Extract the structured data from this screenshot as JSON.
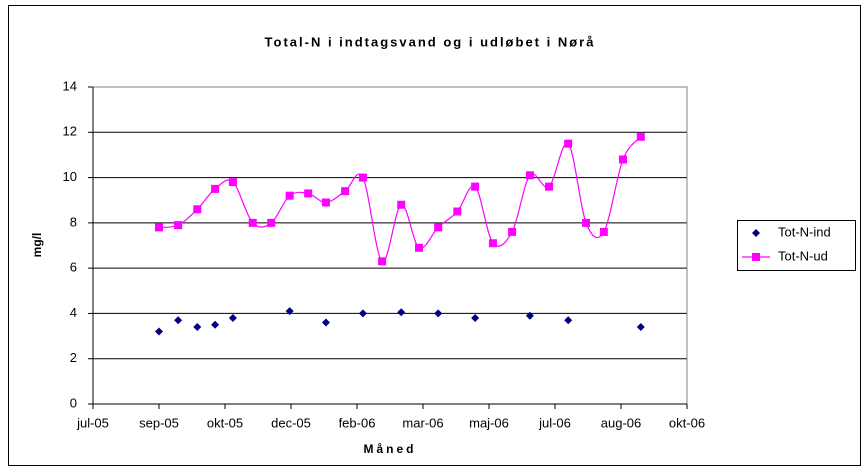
{
  "chart_data": {
    "type": "line",
    "title": "Total-N i indtagsvand og i udløbet i Nørå",
    "x_label": "Måned",
    "y_label": "mg/l",
    "xlim": [
      0,
      9
    ],
    "xticks": [
      {
        "value": 0,
        "label": "jul-05"
      },
      {
        "value": 1,
        "label": "sep-05"
      },
      {
        "value": 2,
        "label": "okt-05"
      },
      {
        "value": 3,
        "label": "dec-05"
      },
      {
        "value": 4,
        "label": "feb-06"
      },
      {
        "value": 5,
        "label": "mar-06"
      },
      {
        "value": 6,
        "label": "maj-06"
      },
      {
        "value": 7,
        "label": "jul-06"
      },
      {
        "value": 8,
        "label": "aug-06"
      },
      {
        "value": 9,
        "label": "okt-06"
      }
    ],
    "ylim": [
      0,
      14
    ],
    "yticks": [
      0,
      2,
      4,
      6,
      8,
      10,
      12,
      14
    ],
    "grid": true,
    "legend": "right",
    "series": [
      {
        "name": "Tot-N-ind",
        "color": "#000080",
        "marker": "diamond",
        "line": false,
        "x": [
          1.0,
          1.29,
          1.58,
          1.85,
          2.12,
          2.98,
          3.53,
          4.09,
          4.67,
          5.23,
          5.79,
          6.62,
          7.2,
          8.3
        ],
        "values": [
          3.2,
          3.7,
          3.4,
          3.5,
          3.8,
          4.1,
          3.6,
          4.0,
          4.05,
          4.0,
          3.8,
          3.9,
          3.7,
          3.4
        ]
      },
      {
        "name": "Tot-N-ud",
        "color": "#ff00ff",
        "marker": "square",
        "line": true,
        "x": [
          1.0,
          1.29,
          1.58,
          1.85,
          2.12,
          2.42,
          2.7,
          2.98,
          3.26,
          3.53,
          3.82,
          4.09,
          4.38,
          4.67,
          4.94,
          5.23,
          5.52,
          5.79,
          6.06,
          6.35,
          6.62,
          6.91,
          7.2,
          7.47,
          7.74,
          8.03,
          8.3
        ],
        "values": [
          7.8,
          7.9,
          8.6,
          9.5,
          9.8,
          8.0,
          8.0,
          9.2,
          9.3,
          8.9,
          9.4,
          10.0,
          6.3,
          8.8,
          6.9,
          7.8,
          8.5,
          9.6,
          7.1,
          7.6,
          10.1,
          9.6,
          11.5,
          8.0,
          7.6,
          10.8,
          11.8
        ]
      }
    ]
  }
}
